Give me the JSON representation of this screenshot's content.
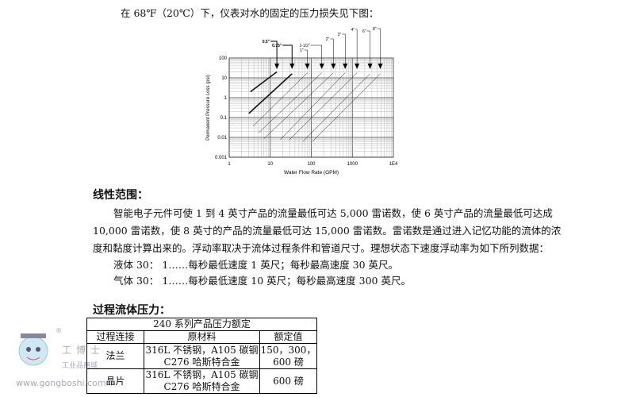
{
  "intro": "在 68℉（20℃）下，仪表对水的固定的压力损失见下图：",
  "chart_data": {
    "type": "line",
    "xlabel": "Water Flow Rate (GPM)",
    "ylabel": "Permanent Pressure Loss (psi)",
    "xscale": "log",
    "yscale": "log",
    "xlim": [
      1,
      10000
    ],
    "ylim": [
      0.001,
      100
    ],
    "xticks": [
      "1",
      "10",
      "100",
      "1000",
      "1E4"
    ],
    "yticks": [
      "0.001",
      "0.01",
      "0.1",
      "1",
      "10",
      "100"
    ],
    "grid": true,
    "series": [
      {
        "name": "0.5\"",
        "bold": true,
        "x": [
          3.3,
          14.5
        ],
        "y": [
          2.0,
          20
        ]
      },
      {
        "name": "0.75\"",
        "bold": true,
        "x": [
          3.0,
          34
        ],
        "y": [
          0.16,
          16
        ]
      },
      {
        "name": "1\"",
        "x": [
          3.8,
          80
        ],
        "y": [
          0.036,
          18
        ]
      },
      {
        "name": "1-1/2\"",
        "x": [
          5.2,
          180
        ],
        "y": [
          0.017,
          18
        ]
      },
      {
        "name": "2\"",
        "x": [
          7,
          345
        ],
        "y": [
          0.0085,
          18
        ]
      },
      {
        "name": "3\"",
        "x": [
          17.6,
          670
        ],
        "y": [
          0.0078,
          18
        ]
      },
      {
        "name": "4\"",
        "x": [
          29,
          1300
        ],
        "y": [
          0.0074,
          18
        ]
      },
      {
        "name": "6\"",
        "x": [
          63,
          2700
        ],
        "y": [
          0.0063,
          16
        ]
      },
      {
        "name": "8\"",
        "x": [
          105,
          4800
        ],
        "y": [
          0.006,
          16
        ]
      }
    ]
  },
  "linear": {
    "heading": "线性范围：",
    "lines": [
      "智能电子元件可使 1 到 4 英寸产品的流量最低可达 5,000 雷诺数，使 6 英寸产品的流量最低可达成",
      "10,000 雷诺数，使 8 英寸的产品的流量最低可达 15,000 雷诺数。雷诺数是通过进入记忆功能的流体的浓",
      "度和黏度计算出来的。浮动率取决于流体过程条件和管道尺寸。理想状态下速度浮动率为如下所列数据：",
      "液体 30：  1……每秒最低速度 1 英尺；每秒最高速度 30 英尺。",
      "气体 30：  1……每秒最低速度 10 英尺；每秒最高速度 300 英尺。"
    ]
  },
  "pressure": {
    "heading": "过程流体压力：",
    "table": {
      "title": "240 系列产品压力额定",
      "headers": [
        "过程连接",
        "原材料",
        "额定值"
      ],
      "rows": [
        {
          "conn": "法兰",
          "mat1": "316L 不锈钢，A105 碳钢",
          "mat2": "C276 哈斯特合金",
          "val1": "150，300，",
          "val2": "600 磅"
        },
        {
          "conn": "晶片",
          "mat1": "316L 不锈钢，A105 碳钢",
          "mat2": "C276 哈斯特合金",
          "val1": "600 磅",
          "val2": ""
        }
      ]
    }
  },
  "watermark": {
    "brand": "工博士",
    "sub": "工业品商城",
    "url": "www.gongboshi.com",
    "reg": "®"
  }
}
